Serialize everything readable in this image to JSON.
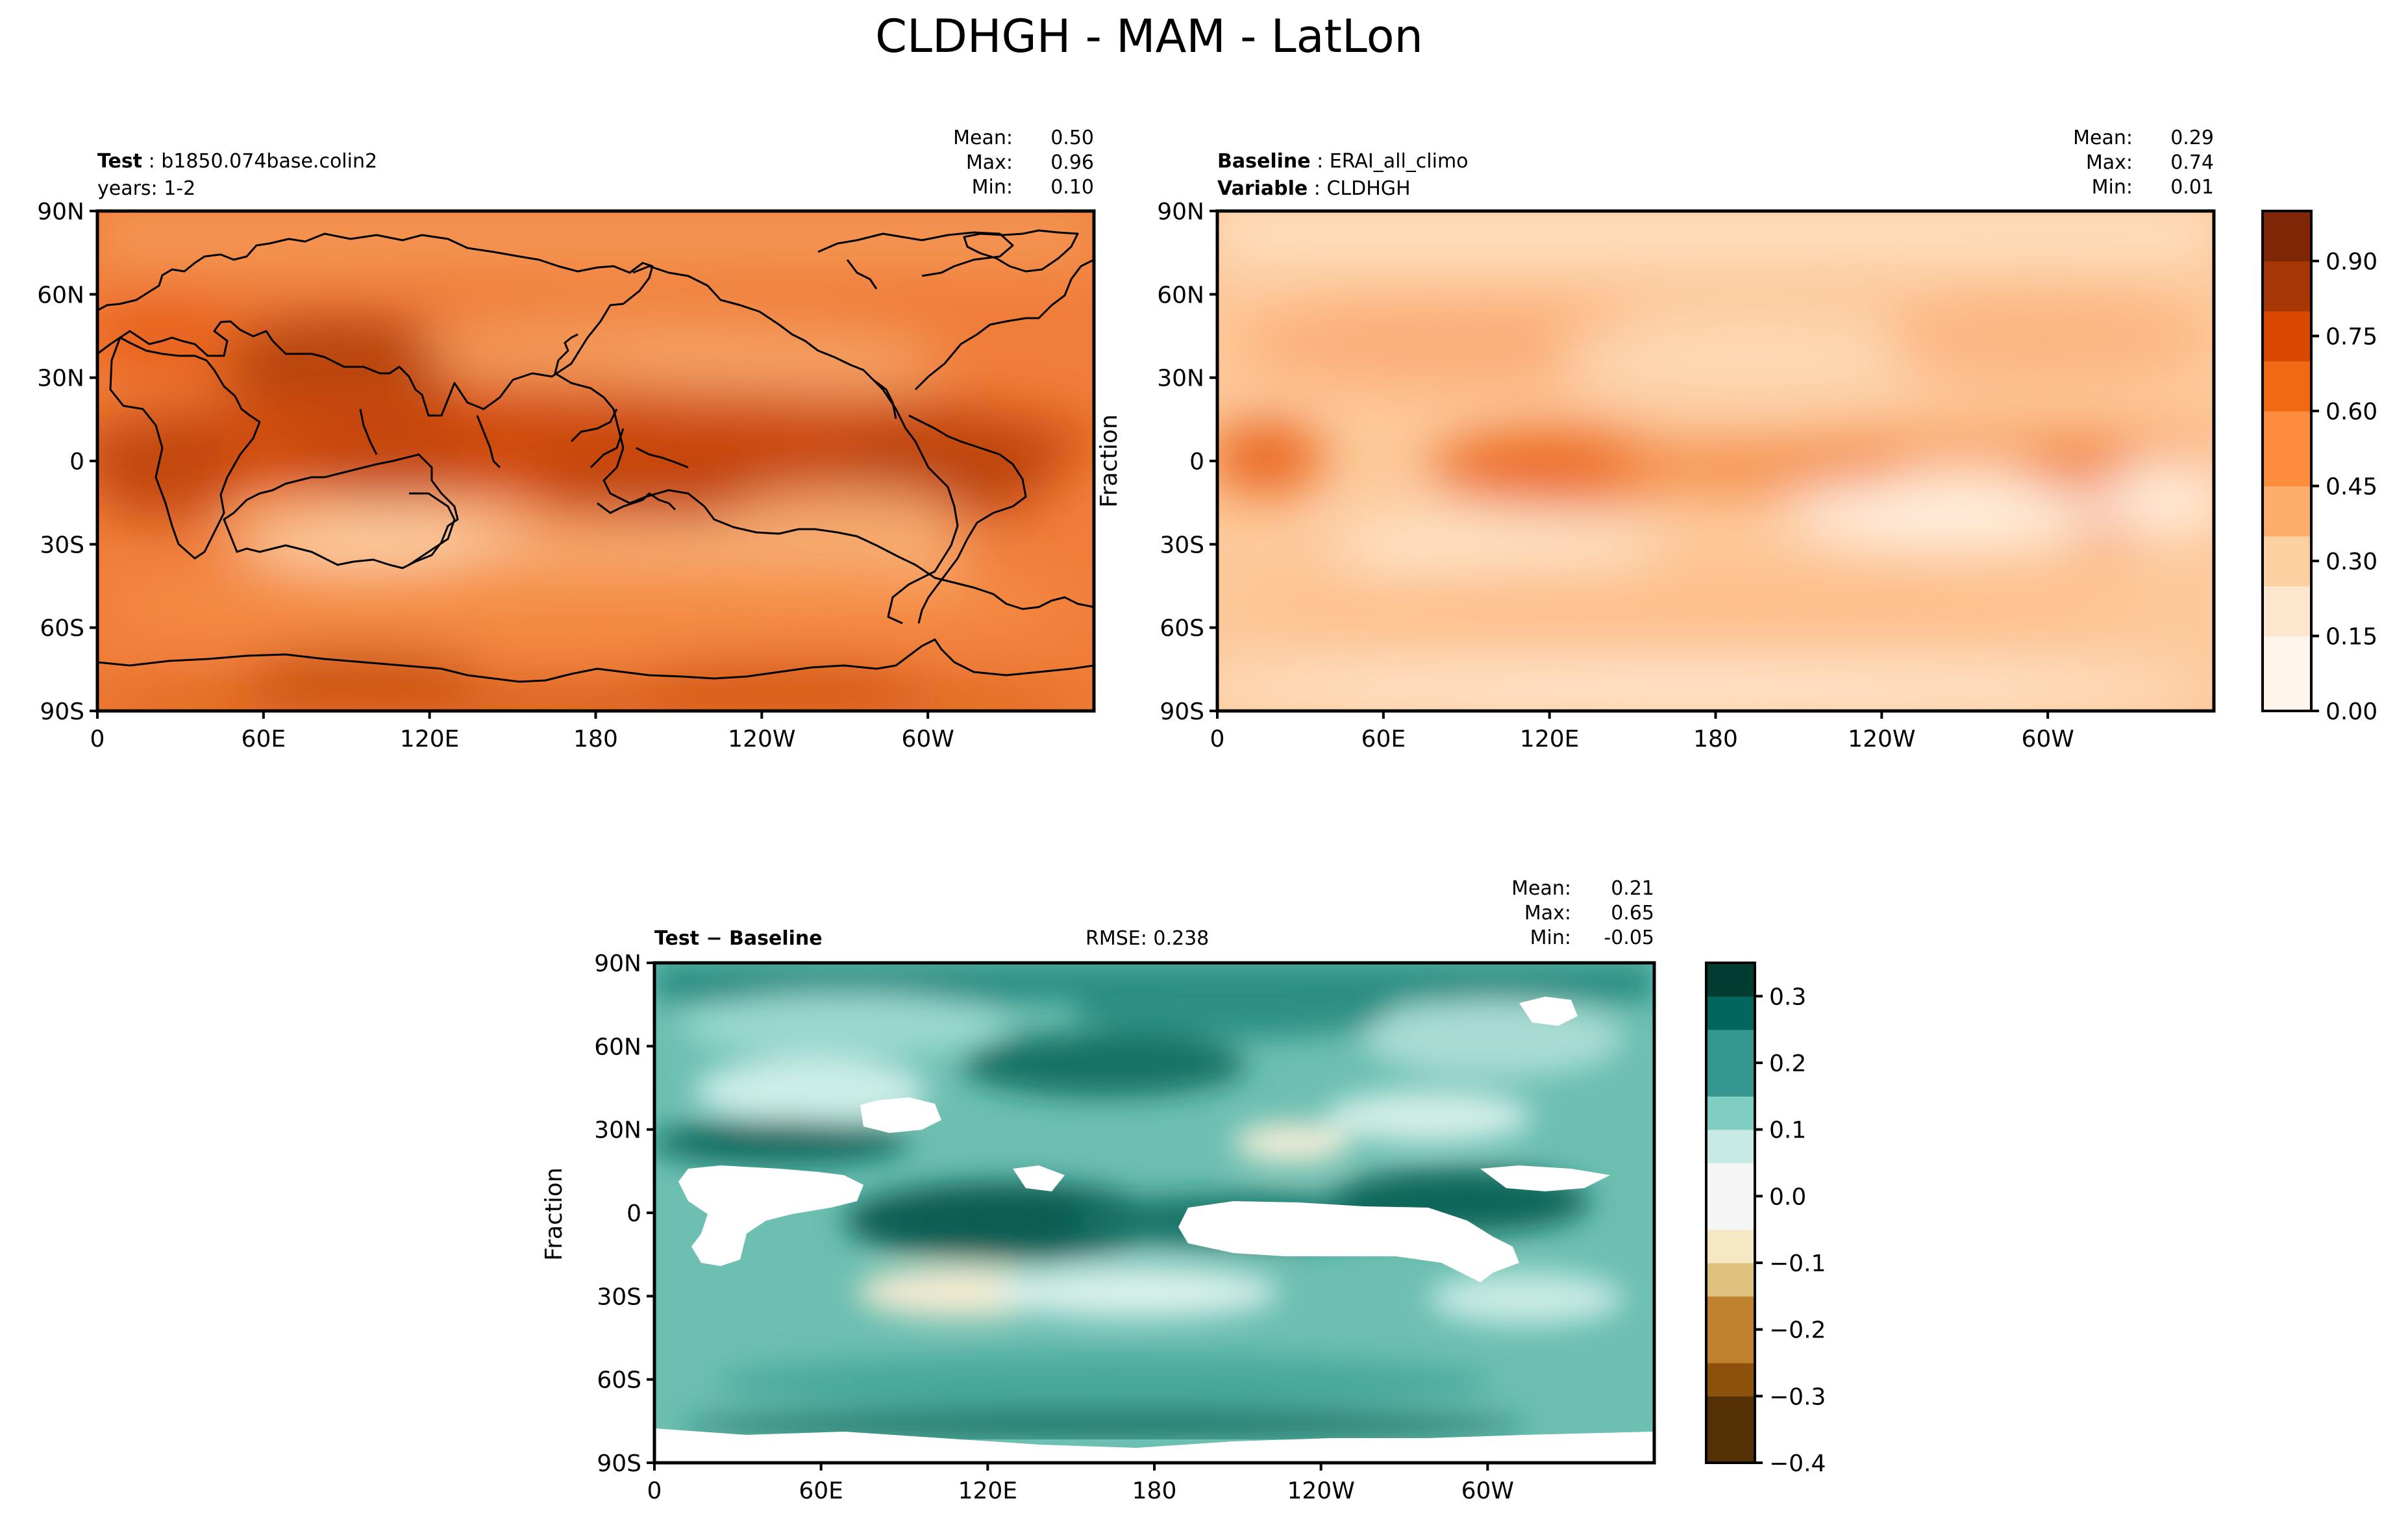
{
  "figure_title": "CLDHGH - MAM - LatLon",
  "colors": {
    "orange_ramp": [
      "#fff5eb",
      "#fee6ce",
      "#fdd0a2",
      "#fdae6b",
      "#fd8d3c",
      "#f16913",
      "#d94801",
      "#a63603",
      "#7f2704"
    ],
    "teal_ramp": [
      "#543005",
      "#8c510a",
      "#bf812d",
      "#dfc27d",
      "#f6e8c3",
      "#f5f5f5",
      "#c7eae5",
      "#80cdc1",
      "#35978f",
      "#01665e",
      "#003c30"
    ],
    "land_line": "#000000"
  },
  "chart_data": [
    {
      "type": "heatmap",
      "panel": "test",
      "label_bold": "Test",
      "label_value": "b1850.074base.colin2",
      "sub_label": "years: 1-2",
      "stats": {
        "mean_label": "Mean:",
        "mean": "0.50",
        "max_label": "Max:",
        "max": "0.96",
        "min_label": "Min:",
        "min": "0.10"
      },
      "xlabel": "",
      "ylabel": "",
      "x_ticks": [
        "0",
        "60E",
        "120E",
        "180",
        "120W",
        "60W"
      ],
      "x_tick_values": [
        0,
        60,
        120,
        180,
        240,
        300
      ],
      "xlim": [
        0,
        360
      ],
      "y_ticks": [
        "90N",
        "60N",
        "30N",
        "0",
        "30S",
        "60S",
        "90S"
      ],
      "y_tick_values": [
        90,
        60,
        30,
        0,
        -30,
        -60,
        -90
      ],
      "ylim": [
        -90,
        90
      ],
      "value_range": [
        0.1,
        0.96
      ]
    },
    {
      "type": "heatmap",
      "panel": "baseline",
      "label_bold": "Baseline",
      "label_value": "ERAI_all_climo",
      "label2_bold": "Variable",
      "label2_value": "CLDHGH",
      "stats": {
        "mean_label": "Mean:",
        "mean": "0.29",
        "max_label": "Max:",
        "max": "0.74",
        "min_label": "Min:",
        "min": "0.01"
      },
      "xlabel": "",
      "ylabel": "Fraction",
      "x_ticks": [
        "0",
        "60E",
        "120E",
        "180",
        "120W",
        "60W"
      ],
      "x_tick_values": [
        0,
        60,
        120,
        180,
        240,
        300
      ],
      "xlim": [
        0,
        360
      ],
      "y_ticks": [
        "90N",
        "60N",
        "30N",
        "0",
        "30S",
        "60S",
        "90S"
      ],
      "y_tick_values": [
        90,
        60,
        30,
        0,
        -30,
        -60,
        -90
      ],
      "ylim": [
        -90,
        90
      ],
      "value_range": [
        0.01,
        0.74
      ],
      "colorbar": {
        "ticks": [
          "0.00",
          "0.15",
          "0.30",
          "0.45",
          "0.60",
          "0.75",
          "0.90"
        ],
        "tick_values": [
          0,
          0.15,
          0.3,
          0.45,
          0.6,
          0.75,
          0.9
        ],
        "range": [
          0,
          1.0
        ],
        "levels": 20
      }
    },
    {
      "type": "heatmap",
      "panel": "diff",
      "label_bold": "Test − Baseline",
      "rmse": "RMSE: 0.238",
      "stats": {
        "mean_label": "Mean:",
        "mean": "0.21",
        "max_label": "Max:",
        "max": "0.65",
        "min_label": "Min:",
        "min": "-0.05"
      },
      "xlabel": "",
      "ylabel": "Fraction",
      "x_ticks": [
        "0",
        "60E",
        "120E",
        "180",
        "120W",
        "60W"
      ],
      "x_tick_values": [
        0,
        60,
        120,
        180,
        240,
        300
      ],
      "xlim": [
        0,
        360
      ],
      "y_ticks": [
        "90N",
        "60N",
        "30N",
        "0",
        "30S",
        "60S",
        "90S"
      ],
      "y_tick_values": [
        90,
        60,
        30,
        0,
        -30,
        -60,
        -90
      ],
      "ylim": [
        -90,
        90
      ],
      "value_range": [
        -0.05,
        0.65
      ],
      "colorbar": {
        "ticks": [
          "0.3",
          "0.2",
          "0.1",
          "0.0",
          "−0.1",
          "−0.2",
          "−0.3",
          "−0.4"
        ],
        "tick_values": [
          0.3,
          0.2,
          0.1,
          0.0,
          -0.1,
          -0.2,
          -0.3,
          -0.4
        ],
        "range": [
          -0.4,
          0.35
        ],
        "levels": 15
      }
    }
  ]
}
